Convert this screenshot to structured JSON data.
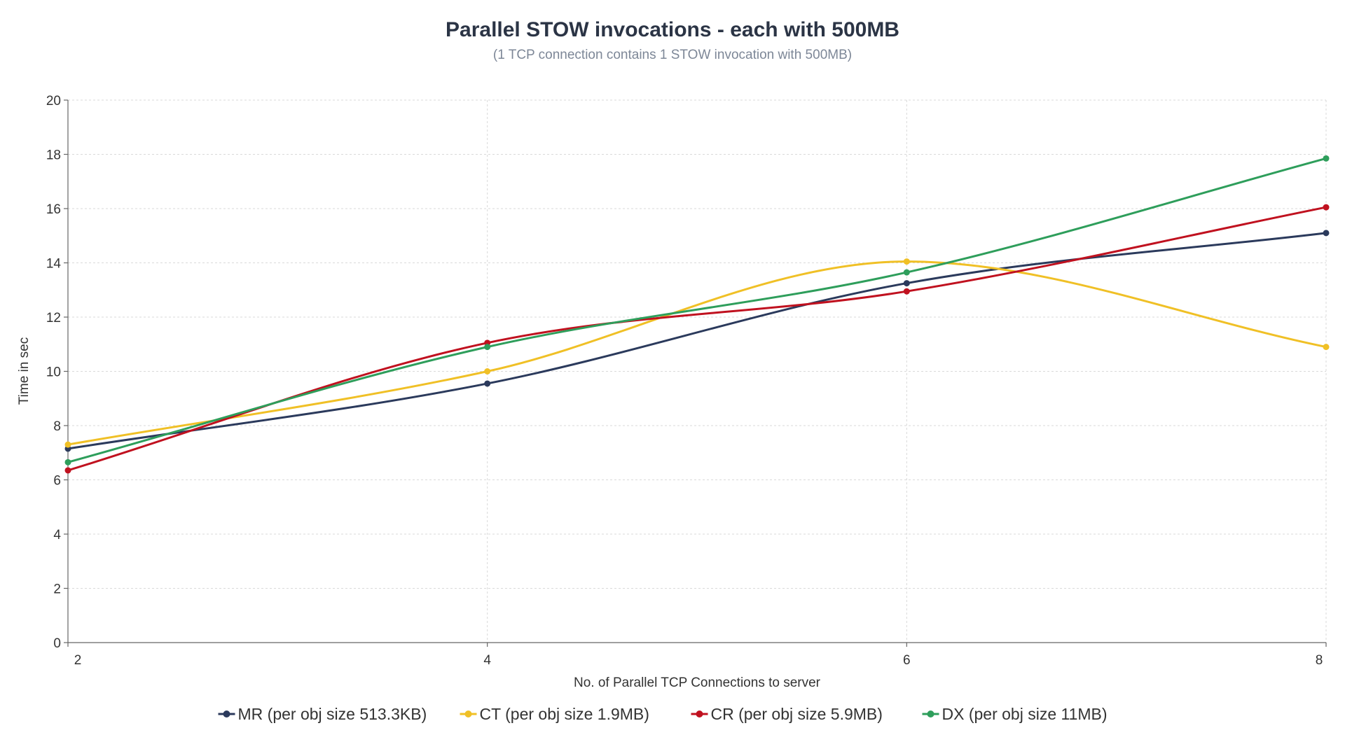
{
  "chart_data": {
    "type": "line",
    "title": "Parallel STOW invocations - each with 500MB",
    "subtitle": "(1 TCP connection contains 1 STOW invocation with 500MB)",
    "xlabel": "No. of Parallel TCP Connections to server",
    "ylabel": "Time in sec",
    "x": [
      2,
      4,
      6,
      8
    ],
    "x_tick_labels": [
      "2",
      "4",
      "6",
      "8"
    ],
    "xlim": [
      2,
      8
    ],
    "ylim": [
      0,
      20
    ],
    "y_ticks": [
      0,
      2,
      4,
      6,
      8,
      10,
      12,
      14,
      16,
      18,
      20
    ],
    "y_tick_labels": [
      "0",
      "2",
      "4",
      "6",
      "8",
      "10",
      "12",
      "14",
      "16",
      "18",
      "20"
    ],
    "grid": true,
    "smooth": true,
    "legend_position": "bottom-center",
    "series": [
      {
        "name": "MR (per obj size 513.3KB)",
        "color": "#2b3a5c",
        "values": [
          7.15,
          9.55,
          13.25,
          15.1
        ]
      },
      {
        "name": "CT (per obj size 1.9MB)",
        "color": "#f0c026",
        "values": [
          7.3,
          10.0,
          14.05,
          10.9
        ]
      },
      {
        "name": "CR (per obj size 5.9MB)",
        "color": "#c0111f",
        "values": [
          6.35,
          11.05,
          12.95,
          16.05
        ]
      },
      {
        "name": "DX (per obj size 11MB)",
        "color": "#2e9e5b",
        "values": [
          6.65,
          10.9,
          13.65,
          17.85
        ]
      }
    ]
  }
}
